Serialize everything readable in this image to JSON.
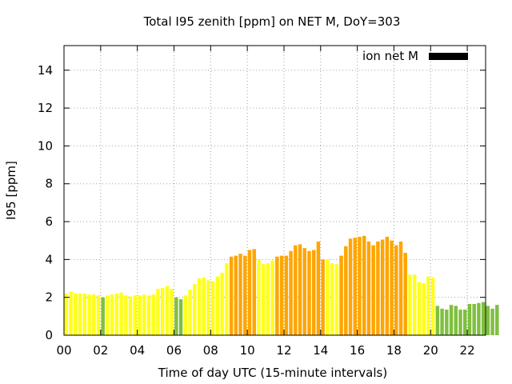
{
  "chart_data": {
    "type": "bar",
    "title": "Total I95 zenith [ppm] on NET M, DoY=303",
    "xlabel": "Time of day UTC (15-minute intervals)",
    "ylabel": "I95 [ppm]",
    "xlim": [
      0,
      23
    ],
    "ylim": [
      0,
      15.3
    ],
    "grid": true,
    "legend": {
      "label": "ion net M",
      "color": "#000000",
      "position": "top-right"
    },
    "x_ticks": [
      {
        "value": 0,
        "label": "00"
      },
      {
        "value": 2,
        "label": "02"
      },
      {
        "value": 4,
        "label": "04"
      },
      {
        "value": 6,
        "label": "06"
      },
      {
        "value": 8,
        "label": "08"
      },
      {
        "value": 10,
        "label": "10"
      },
      {
        "value": 12,
        "label": "12"
      },
      {
        "value": 14,
        "label": "14"
      },
      {
        "value": 16,
        "label": "16"
      },
      {
        "value": 18,
        "label": "18"
      },
      {
        "value": 20,
        "label": "20"
      },
      {
        "value": 22,
        "label": "22"
      }
    ],
    "y_ticks": [
      {
        "value": 0,
        "label": "0"
      },
      {
        "value": 2,
        "label": "2"
      },
      {
        "value": 4,
        "label": "4"
      },
      {
        "value": 6,
        "label": "6"
      },
      {
        "value": 8,
        "label": "8"
      },
      {
        "value": 10,
        "label": "10"
      },
      {
        "value": 12,
        "label": "12"
      },
      {
        "value": 14,
        "label": "14"
      }
    ],
    "interval_hours": 0.25,
    "status_colors": {
      "G": "#7fbf3f",
      "Y": "#ffff1a",
      "O": "#ffa500"
    },
    "values": [
      2.2,
      2.3,
      2.2,
      2.2,
      2.2,
      2.15,
      2.15,
      2.1,
      2.0,
      2.1,
      2.15,
      2.2,
      2.25,
      2.1,
      2.05,
      2.1,
      2.1,
      2.15,
      2.1,
      2.15,
      2.45,
      2.5,
      2.6,
      2.45,
      2.0,
      1.9,
      2.1,
      2.4,
      2.7,
      3.0,
      3.05,
      2.9,
      2.85,
      3.1,
      3.3,
      3.8,
      4.15,
      4.2,
      4.3,
      4.2,
      4.5,
      4.55,
      4.0,
      3.75,
      3.8,
      3.95,
      4.15,
      4.2,
      4.2,
      4.45,
      4.75,
      4.8,
      4.6,
      4.45,
      4.5,
      4.95,
      4.0,
      4.0,
      3.8,
      3.75,
      4.2,
      4.7,
      5.1,
      5.15,
      5.2,
      5.25,
      4.95,
      4.75,
      4.95,
      5.05,
      5.2,
      5.0,
      4.75,
      4.95,
      4.35,
      3.2,
      3.2,
      2.8,
      2.75,
      3.1,
      3.05,
      1.55,
      1.4,
      1.35,
      1.6,
      1.55,
      1.35,
      1.35,
      1.65,
      1.65,
      1.7,
      1.75,
      1.55,
      1.4,
      1.6
    ],
    "status": [
      "Y",
      "Y",
      "Y",
      "Y",
      "Y",
      "Y",
      "Y",
      "Y",
      "G",
      "Y",
      "Y",
      "Y",
      "Y",
      "Y",
      "Y",
      "Y",
      "Y",
      "Y",
      "Y",
      "Y",
      "Y",
      "Y",
      "Y",
      "Y",
      "G",
      "G",
      "Y",
      "Y",
      "Y",
      "Y",
      "Y",
      "Y",
      "Y",
      "Y",
      "Y",
      "Y",
      "O",
      "O",
      "O",
      "O",
      "O",
      "O",
      "Y",
      "Y",
      "Y",
      "Y",
      "O",
      "O",
      "O",
      "O",
      "O",
      "O",
      "O",
      "O",
      "O",
      "O",
      "O",
      "Y",
      "Y",
      "Y",
      "O",
      "O",
      "O",
      "O",
      "O",
      "O",
      "O",
      "O",
      "O",
      "O",
      "O",
      "O",
      "O",
      "O",
      "O",
      "Y",
      "Y",
      "Y",
      "Y",
      "Y",
      "Y",
      "G",
      "G",
      "G",
      "G",
      "G",
      "G",
      "G",
      "G",
      "G",
      "G",
      "G",
      "G",
      "G",
      "G"
    ]
  }
}
